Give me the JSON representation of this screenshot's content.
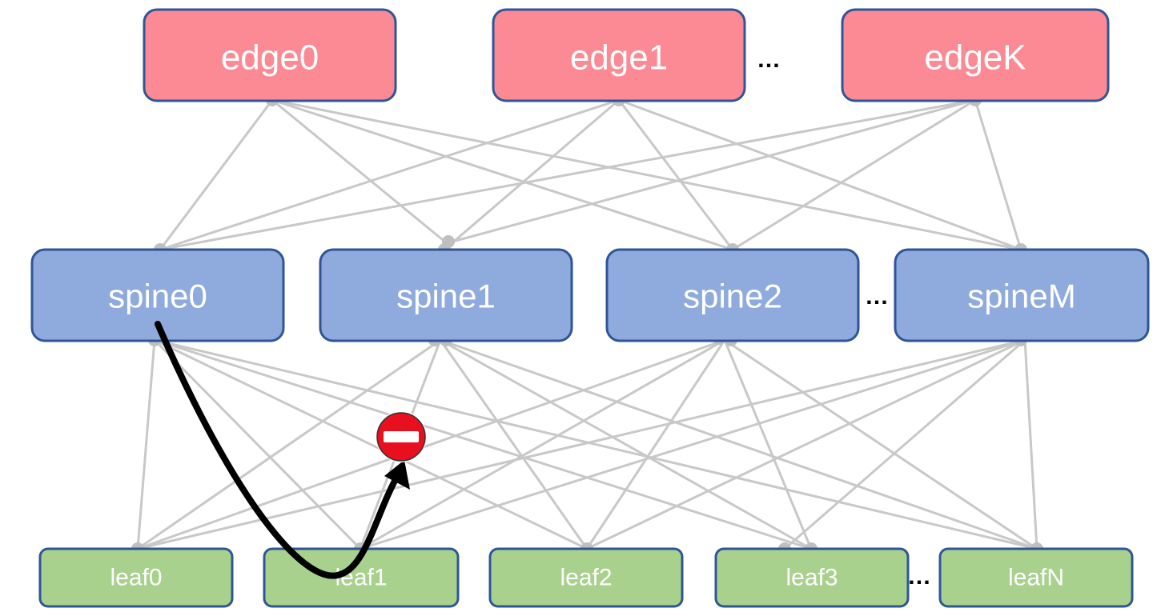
{
  "edges": [
    {
      "id": "edge0",
      "label": "edge0"
    },
    {
      "id": "edge1",
      "label": "edge1"
    },
    {
      "id": "edgeK",
      "label": "edgeK"
    }
  ],
  "spines": [
    {
      "id": "spine0",
      "label": "spine0"
    },
    {
      "id": "spine1",
      "label": "spine1"
    },
    {
      "id": "spine2",
      "label": "spine2"
    },
    {
      "id": "spineM",
      "label": "spineM"
    }
  ],
  "leaves": [
    {
      "id": "leaf0",
      "label": "leaf0"
    },
    {
      "id": "leaf1",
      "label": "leaf1"
    },
    {
      "id": "leaf2",
      "label": "leaf2"
    },
    {
      "id": "leaf3",
      "label": "leaf3"
    },
    {
      "id": "leafN",
      "label": "leafN"
    }
  ],
  "ellipses": {
    "edge_row": "…",
    "spine_row": "…",
    "leaf_row": "…"
  },
  "colors": {
    "edge_fill": "#fb8a94",
    "spine_fill": "#8faadc",
    "leaf_fill": "#a9d18e",
    "node_border": "#2f5597",
    "link": "#c8c8c8",
    "dot": "#bfbfbf",
    "path_arrow": "#000000",
    "blocked_sign": "#e8101e"
  },
  "icons": {
    "blocked": "no-entry-icon"
  }
}
